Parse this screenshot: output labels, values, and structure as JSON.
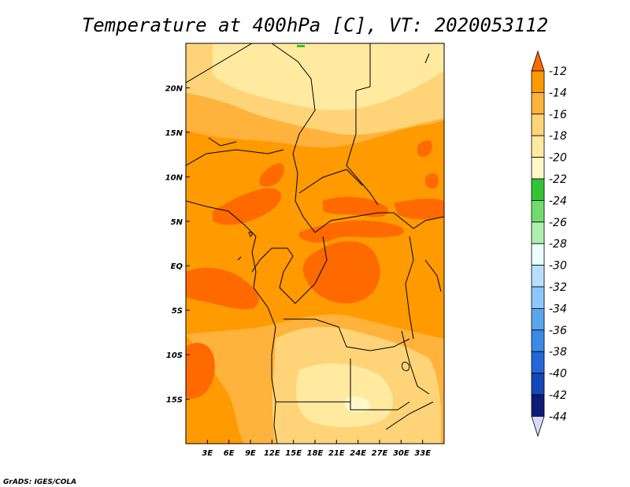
{
  "title": "Temperature at 400hPa [C], VT: 2020053112",
  "footer": "GrADS: IGES/COLA",
  "map": {
    "lon_range": [
      0,
      36
    ],
    "lat_range": [
      -20,
      25
    ],
    "lon_ticks": [
      {
        "value": 3,
        "label": "3E"
      },
      {
        "value": 6,
        "label": "6E"
      },
      {
        "value": 9,
        "label": "9E"
      },
      {
        "value": 12,
        "label": "12E"
      },
      {
        "value": 15,
        "label": "15E"
      },
      {
        "value": 18,
        "label": "18E"
      },
      {
        "value": 21,
        "label": "21E"
      },
      {
        "value": 24,
        "label": "24E"
      },
      {
        "value": 27,
        "label": "27E"
      },
      {
        "value": 30,
        "label": "30E"
      },
      {
        "value": 33,
        "label": "33E"
      }
    ],
    "lat_ticks": [
      {
        "value": 20,
        "label": "20N"
      },
      {
        "value": 15,
        "label": "15N"
      },
      {
        "value": 10,
        "label": "10N"
      },
      {
        "value": 5,
        "label": "5N"
      },
      {
        "value": 0,
        "label": "EQ"
      },
      {
        "value": -5,
        "label": "5S"
      },
      {
        "value": -10,
        "label": "10S"
      },
      {
        "value": -15,
        "label": "15S"
      }
    ]
  },
  "colorbar": {
    "levels": [
      "-12",
      "-14",
      "-16",
      "-18",
      "-20",
      "-22",
      "-24",
      "-26",
      "-28",
      "-30",
      "-32",
      "-34",
      "-36",
      "-38",
      "-40",
      "-42",
      "-44"
    ],
    "colors": [
      "#ff6a00",
      "#ff9a00",
      "#ffb23c",
      "#ffd478",
      "#ffeaa0",
      "#fff8c8",
      "#33c433",
      "#70dc70",
      "#b0eeb0",
      "#eaffff",
      "#b8deff",
      "#8ec6ff",
      "#5aa6ee",
      "#3a8ae8",
      "#2468d8",
      "#1448b8",
      "#0c1a78",
      "#d8d8f8"
    ]
  }
}
